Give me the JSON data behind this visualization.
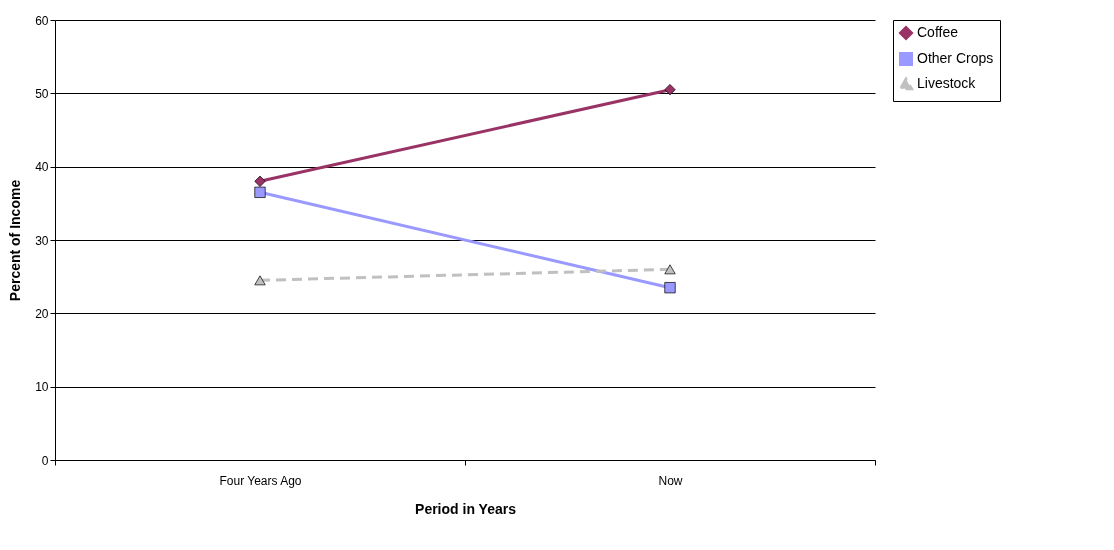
{
  "chart_data": {
    "type": "line",
    "xlabel": "Period in Years",
    "ylabel": "Percent of Income",
    "categories": [
      "Four Years Ago",
      "Now"
    ],
    "series": [
      {
        "name": "Coffee",
        "color": "#993366",
        "values": [
          38,
          50.5
        ],
        "marker": "diamond",
        "line_style": "solid"
      },
      {
        "name": "Other Crops",
        "color": "#9999ff",
        "values": [
          36.5,
          23.5
        ],
        "marker": "square",
        "line_style": "solid"
      },
      {
        "name": "Livestock",
        "color": "#c0c0c0",
        "values": [
          24.5,
          26
        ],
        "marker": "triangle",
        "line_style": "dashed"
      }
    ],
    "ylim": [
      0,
      60
    ],
    "yticks": [
      0,
      10,
      20,
      30,
      40,
      50,
      60
    ],
    "grid": "y",
    "legend": "right"
  }
}
